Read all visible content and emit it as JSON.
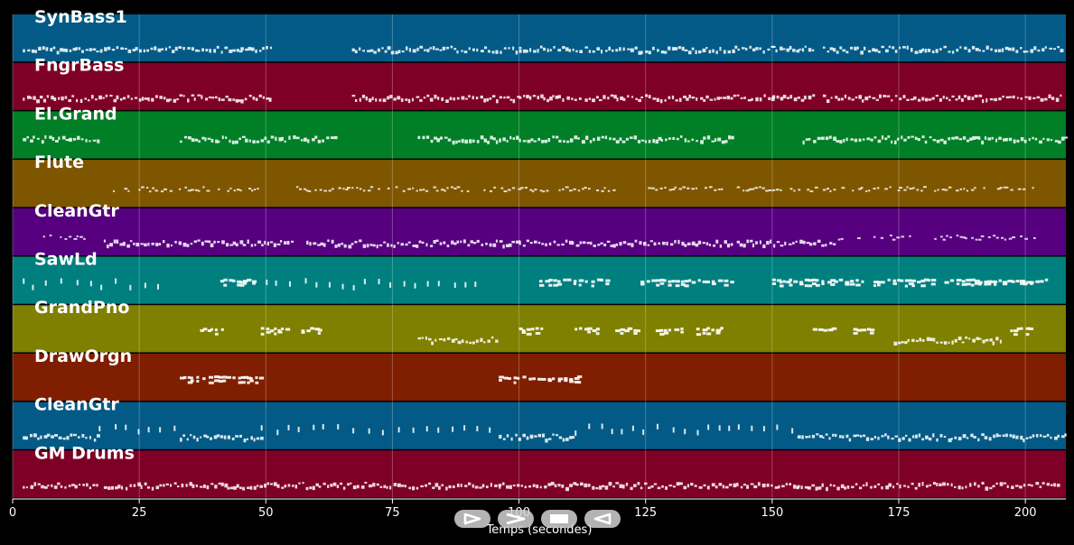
{
  "chart_data": {
    "type": "piano-roll",
    "xlabel": "Temps (secondes)",
    "xlim": [
      0,
      208
    ],
    "xticks": [
      0,
      25,
      50,
      75,
      100,
      125,
      150,
      175,
      200
    ],
    "grid": true,
    "tracks": [
      {
        "name": "SynBass1",
        "color": "#035a86",
        "segments": [
          [
            2,
            45,
            "dense"
          ],
          [
            45,
            51,
            "dense"
          ],
          [
            67,
            100,
            "dense"
          ],
          [
            100,
            112,
            "dense"
          ],
          [
            113,
            150,
            "dense"
          ],
          [
            150,
            158,
            "dense"
          ],
          [
            160,
            207,
            "dense"
          ]
        ]
      },
      {
        "name": "FngrBass",
        "color": "#7f0027",
        "segments": [
          [
            2,
            45,
            "dense"
          ],
          [
            45,
            51,
            "dense"
          ],
          [
            67,
            100,
            "dense"
          ],
          [
            100,
            112,
            "dense"
          ],
          [
            113,
            150,
            "dense"
          ],
          [
            150,
            158,
            "dense"
          ],
          [
            160,
            207,
            "dense"
          ]
        ]
      },
      {
        "name": "El.Grand",
        "color": "#007f27",
        "segments": [
          [
            2,
            17,
            "dense"
          ],
          [
            33,
            64,
            "dense"
          ],
          [
            80,
            142,
            "dense"
          ],
          [
            156,
            208,
            "dense"
          ]
        ]
      },
      {
        "name": "Flute",
        "color": "#7f5600",
        "segments": [
          [
            18,
            30,
            "phrases"
          ],
          [
            31,
            49,
            "phrases"
          ],
          [
            56,
            66,
            "phrases"
          ],
          [
            66,
            90,
            "phrases"
          ],
          [
            93,
            103,
            "phrases"
          ],
          [
            103,
            120,
            "phrases"
          ],
          [
            125,
            140,
            "phrases"
          ],
          [
            143,
            160,
            "phrases"
          ],
          [
            160,
            175,
            "phrases"
          ],
          [
            175,
            202,
            "phrases"
          ]
        ]
      },
      {
        "name": "CleanGtr",
        "color": "#56007f",
        "segments": [
          [
            6,
            14,
            "phrases"
          ],
          [
            18,
            55,
            "dense"
          ],
          [
            58,
            100,
            "dense"
          ],
          [
            100,
            142,
            "dense"
          ],
          [
            143,
            162,
            "dense"
          ],
          [
            163,
            178,
            "phrases"
          ],
          [
            182,
            202,
            "phrases"
          ]
        ]
      },
      {
        "name": "SawLd",
        "color": "#007f7f",
        "segments": [
          [
            2,
            30,
            "sparse"
          ],
          [
            41,
            48,
            "blocks"
          ],
          [
            50,
            93,
            "sparse"
          ],
          [
            104,
            118,
            "blocks"
          ],
          [
            124,
            142,
            "blocks"
          ],
          [
            150,
            168,
            "blocks"
          ],
          [
            170,
            182,
            "blocks"
          ],
          [
            184,
            205,
            "blocks"
          ]
        ]
      },
      {
        "name": "GrandPno",
        "color": "#7f7f00",
        "segments": [
          [
            37,
            42,
            "blocks"
          ],
          [
            49,
            54,
            "blocks"
          ],
          [
            57,
            61,
            "blocks"
          ],
          [
            80,
            96,
            "dense"
          ],
          [
            100,
            105,
            "blocks"
          ],
          [
            111,
            116,
            "blocks"
          ],
          [
            119,
            124,
            "blocks"
          ],
          [
            127,
            132,
            "blocks"
          ],
          [
            135,
            140,
            "blocks"
          ],
          [
            158,
            162,
            "blocks"
          ],
          [
            166,
            170,
            "blocks"
          ],
          [
            174,
            195,
            "dense"
          ],
          [
            197,
            201,
            "blocks"
          ]
        ]
      },
      {
        "name": "DrawOrgn",
        "color": "#7f1e00",
        "segments": [
          [
            33,
            49,
            "blocks"
          ],
          [
            96,
            112,
            "blocks"
          ]
        ]
      },
      {
        "name": "CleanGtr",
        "color": "#035a86",
        "segments": [
          [
            2,
            17,
            "dense"
          ],
          [
            17,
            33,
            "sparse"
          ],
          [
            33,
            49,
            "dense"
          ],
          [
            49,
            96,
            "sparse"
          ],
          [
            96,
            111,
            "dense"
          ],
          [
            111,
            155,
            "sparse"
          ],
          [
            155,
            208,
            "dense"
          ]
        ]
      },
      {
        "name": "GM Drums",
        "color": "#7f0027",
        "segments": [
          [
            2,
            17,
            "dense"
          ],
          [
            18,
            64,
            "dense"
          ],
          [
            64,
            96,
            "dense"
          ],
          [
            96,
            155,
            "dense"
          ],
          [
            155,
            207,
            "dense"
          ]
        ]
      }
    ]
  },
  "controls": [
    {
      "name": "play-button",
      "icon": "play-icon"
    },
    {
      "name": "fast-forward-button",
      "icon": "fast-forward-icon"
    },
    {
      "name": "stop-button",
      "icon": "stop-icon"
    },
    {
      "name": "rewind-button",
      "icon": "rewind-icon"
    }
  ]
}
